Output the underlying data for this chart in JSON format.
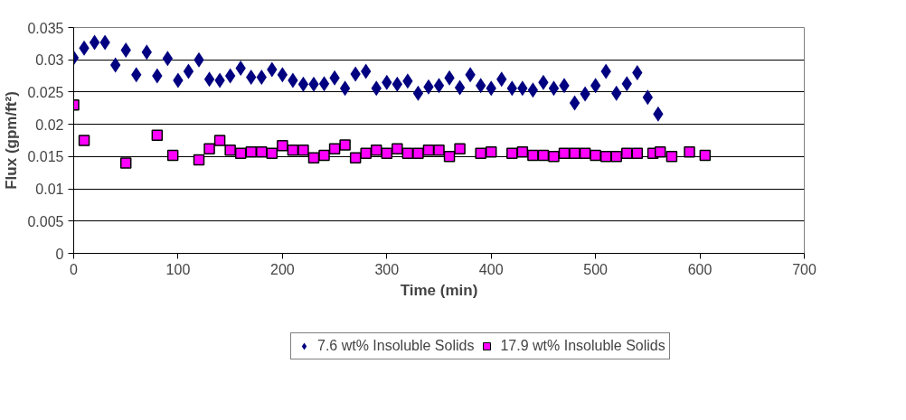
{
  "chart_data": {
    "type": "scatter",
    "xlabel": "Time (min)",
    "ylabel": "Flux (gpm/ft²)",
    "xlim": [
      0,
      700
    ],
    "xticks": [
      0,
      100,
      200,
      300,
      400,
      500,
      600,
      700
    ],
    "ylim": [
      0,
      0.035
    ],
    "yticks": [
      0,
      0.005,
      0.01,
      0.015,
      0.02,
      0.025,
      0.03,
      0.035
    ],
    "grid": "y",
    "legend": "bottom",
    "series": [
      {
        "name": "7.6 wt% Insoluble Solids",
        "color": "#000080",
        "marker": "diamond",
        "x": [
          0,
          10,
          20,
          30,
          40,
          50,
          60,
          70,
          80,
          90,
          100,
          110,
          120,
          130,
          140,
          150,
          160,
          170,
          180,
          190,
          200,
          210,
          220,
          230,
          240,
          250,
          260,
          270,
          280,
          290,
          300,
          310,
          320,
          330,
          340,
          350,
          360,
          370,
          380,
          390,
          400,
          410,
          420,
          430,
          440,
          450,
          460,
          470,
          480,
          490,
          500,
          510,
          520,
          530,
          540,
          550,
          560
        ],
        "values": [
          0.0303,
          0.0318,
          0.0327,
          0.0327,
          0.0292,
          0.0315,
          0.0277,
          0.0312,
          0.0275,
          0.0302,
          0.0268,
          0.0282,
          0.03,
          0.027,
          0.0268,
          0.0275,
          0.0287,
          0.0273,
          0.0273,
          0.0285,
          0.0277,
          0.0268,
          0.0262,
          0.0262,
          0.0263,
          0.0272,
          0.0256,
          0.0278,
          0.0282,
          0.0256,
          0.0265,
          0.0262,
          0.0267,
          0.0248,
          0.0258,
          0.026,
          0.0272,
          0.0257,
          0.0277,
          0.026,
          0.0256,
          0.027,
          0.0256,
          0.0256,
          0.0253,
          0.0265,
          0.0256,
          0.026,
          0.0233,
          0.0247,
          0.026,
          0.0282,
          0.0248,
          0.0263,
          0.028,
          0.0242,
          0.0216
        ]
      },
      {
        "name": "17.9 wt% Insoluble Solids",
        "color": "#ff00ff",
        "marker": "square",
        "x": [
          0,
          10,
          50,
          80,
          95,
          120,
          130,
          140,
          150,
          160,
          170,
          180,
          190,
          200,
          210,
          220,
          230,
          240,
          250,
          260,
          270,
          280,
          290,
          300,
          310,
          320,
          330,
          340,
          350,
          360,
          370,
          390,
          400,
          420,
          430,
          440,
          450,
          460,
          470,
          480,
          490,
          500,
          510,
          520,
          530,
          540,
          555,
          562,
          573,
          590,
          605
        ],
        "values": [
          0.023,
          0.0175,
          0.014,
          0.0183,
          0.0152,
          0.0145,
          0.0162,
          0.0175,
          0.016,
          0.0155,
          0.0157,
          0.0157,
          0.0155,
          0.0167,
          0.016,
          0.016,
          0.0148,
          0.0152,
          0.0162,
          0.0168,
          0.0148,
          0.0155,
          0.016,
          0.0155,
          0.0162,
          0.0155,
          0.0155,
          0.016,
          0.016,
          0.015,
          0.0162,
          0.0155,
          0.0157,
          0.0155,
          0.0157,
          0.0152,
          0.0152,
          0.015,
          0.0155,
          0.0155,
          0.0155,
          0.0152,
          0.015,
          0.015,
          0.0155,
          0.0155,
          0.0155,
          0.0157,
          0.015,
          0.0157,
          0.0152
        ]
      }
    ]
  }
}
